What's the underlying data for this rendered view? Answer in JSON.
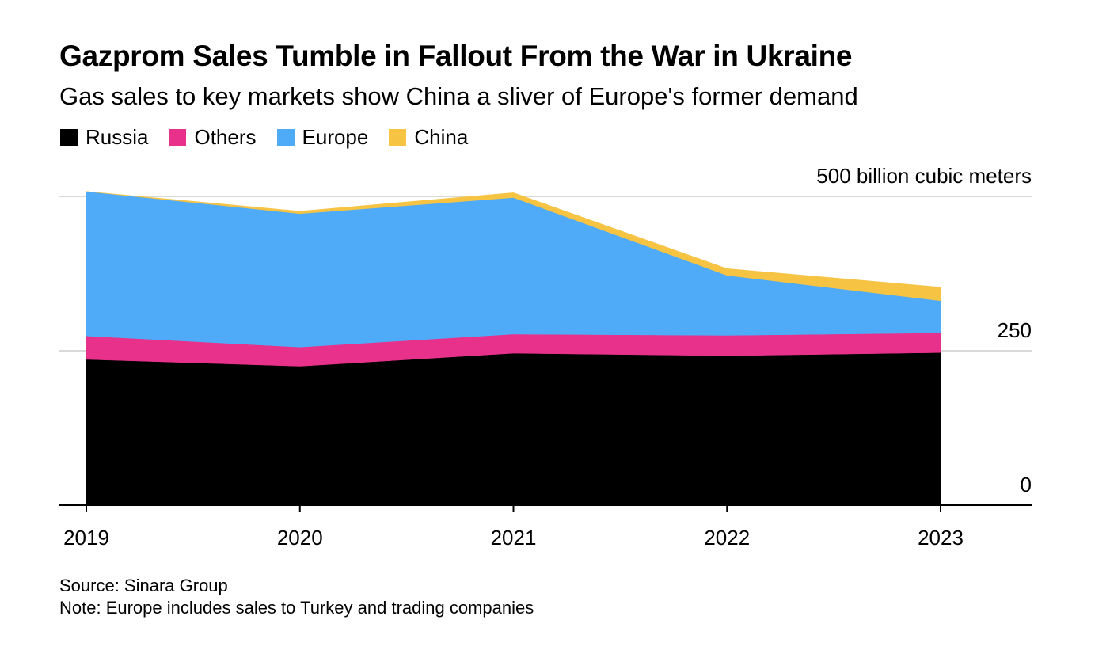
{
  "title": "Gazprom Sales Tumble in Fallout From the War in Ukraine",
  "subtitle": "Gas sales to key markets show China a sliver of Europe's former demand",
  "legend": [
    {
      "label": "Russia",
      "color": "#000000"
    },
    {
      "label": "Others",
      "color": "#e8318a"
    },
    {
      "label": "Europe",
      "color": "#4fabf7"
    },
    {
      "label": "China",
      "color": "#f6c343"
    }
  ],
  "chart_data": {
    "type": "area",
    "stacked": true,
    "x": [
      "2019",
      "2020",
      "2021",
      "2022",
      "2023"
    ],
    "series": [
      {
        "name": "Russia",
        "color": "#000000",
        "values": [
          236,
          225,
          246,
          242,
          247
        ]
      },
      {
        "name": "Others",
        "color": "#e8318a",
        "values": [
          38,
          31,
          31,
          33,
          32
        ]
      },
      {
        "name": "Europe",
        "color": "#4fabf7",
        "values": [
          234,
          216,
          221,
          97,
          52
        ]
      },
      {
        "name": "China",
        "color": "#f6c343",
        "values": [
          0,
          4,
          8,
          11,
          22
        ]
      }
    ],
    "ylim": [
      0,
      500
    ],
    "y_ticks": [
      {
        "value": 0,
        "label": "0"
      },
      {
        "value": 250,
        "label": "250"
      },
      {
        "value": 500,
        "label": "500 billion cubic meters"
      }
    ],
    "grid": true
  },
  "footer": {
    "source": "Source: Sinara Group",
    "note": "Note: Europe includes sales to Turkey and trading companies"
  }
}
